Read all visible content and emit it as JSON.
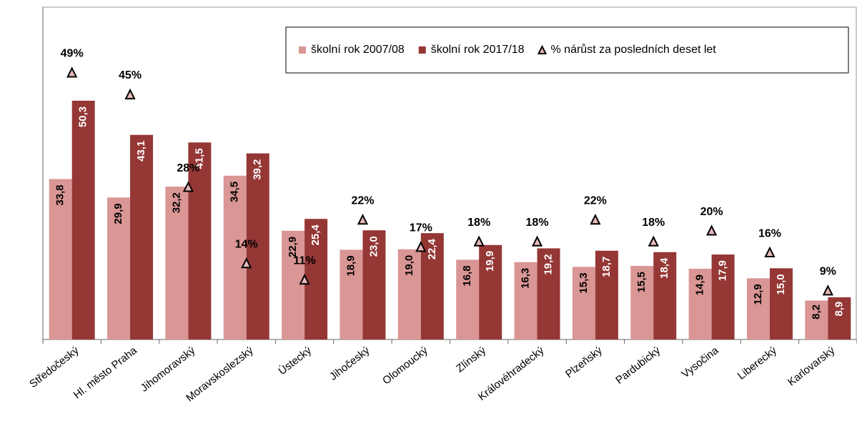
{
  "chart_data": {
    "type": "bar",
    "categories": [
      "Středočeský",
      "Hl. město Praha",
      "Jihomoravský",
      "Moravskoslezský",
      "Ústecký",
      "Jihočeský",
      "Olomoucký",
      "Zlínský",
      "Královéhradecký",
      "Plzeňský",
      "Pardubický",
      "Vysočina",
      "Liberecký",
      "Karlovarský"
    ],
    "series": [
      {
        "name": "školní rok 2007/08",
        "color": "#d99694",
        "values": [
          33.8,
          29.9,
          32.2,
          34.5,
          22.9,
          18.9,
          19.0,
          16.8,
          16.3,
          15.3,
          15.5,
          14.9,
          12.9,
          8.2
        ],
        "value_labels": [
          "33,8",
          "29,9",
          "32,2",
          "34,5",
          "22,9",
          "18,9",
          "19,0",
          "16,8",
          "16,3",
          "15,3",
          "15,5",
          "14,9",
          "12,9",
          "8,2"
        ]
      },
      {
        "name": "školní rok 2017/18",
        "color": "#953735",
        "values": [
          50.3,
          43.1,
          41.5,
          39.2,
          25.4,
          23.0,
          22.4,
          19.9,
          19.2,
          18.7,
          18.4,
          17.9,
          15.0,
          8.9
        ],
        "value_labels": [
          "50,3",
          "43,1",
          "41,5",
          "39,2",
          "25,4",
          "23,0",
          "22,4",
          "19,9",
          "19,2",
          "18,7",
          "18,4",
          "17,9",
          "15,0",
          "8,9"
        ]
      },
      {
        "name": "% nárůst za posledních deset let",
        "color": "#e6b9b8",
        "marker": "triangle",
        "axis": "y2",
        "values": [
          49,
          45,
          28,
          14,
          11,
          22,
          17,
          18,
          18,
          22,
          18,
          20,
          16,
          9
        ],
        "value_labels": [
          "49%",
          "45%",
          "28%",
          "14%",
          "11%",
          "22%",
          "17%",
          "18%",
          "18%",
          "22%",
          "18%",
          "20%",
          "16%",
          "9%"
        ]
      }
    ],
    "ylim": [
      0,
      70
    ],
    "y2lim": [
      0,
      61
    ],
    "legend": "top-right"
  }
}
